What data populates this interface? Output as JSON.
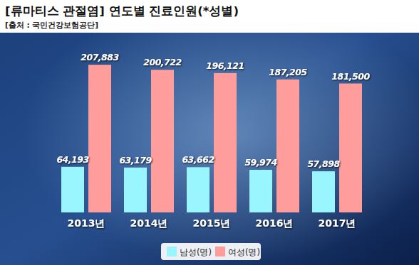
{
  "chart_data": {
    "type": "bar",
    "title": "[류마티스 관절염] 연도별 진료인원(*성별)",
    "subtitle": "[출처 : 국민건강보험공단]",
    "categories": [
      "2013년",
      "2014년",
      "2015년",
      "2016년",
      "2017년"
    ],
    "series": [
      {
        "name": "남성(명)",
        "color": "#99f6ff",
        "values": [
          64193,
          63179,
          63662,
          59974,
          57898
        ],
        "value_labels": [
          "64,193",
          "63,179",
          "63,662",
          "59,974",
          "57,898"
        ]
      },
      {
        "name": "여성(명)",
        "color": "#ff9c9c",
        "values": [
          207883,
          200722,
          196121,
          187205,
          181500
        ],
        "value_labels": [
          "207,883",
          "200,722",
          "196,121",
          "187,205",
          "181,500"
        ]
      }
    ],
    "ylim": [
      0,
      216000
    ],
    "data_labels": true,
    "tick_labels": "x",
    "grid": false,
    "legend": "bottom"
  }
}
